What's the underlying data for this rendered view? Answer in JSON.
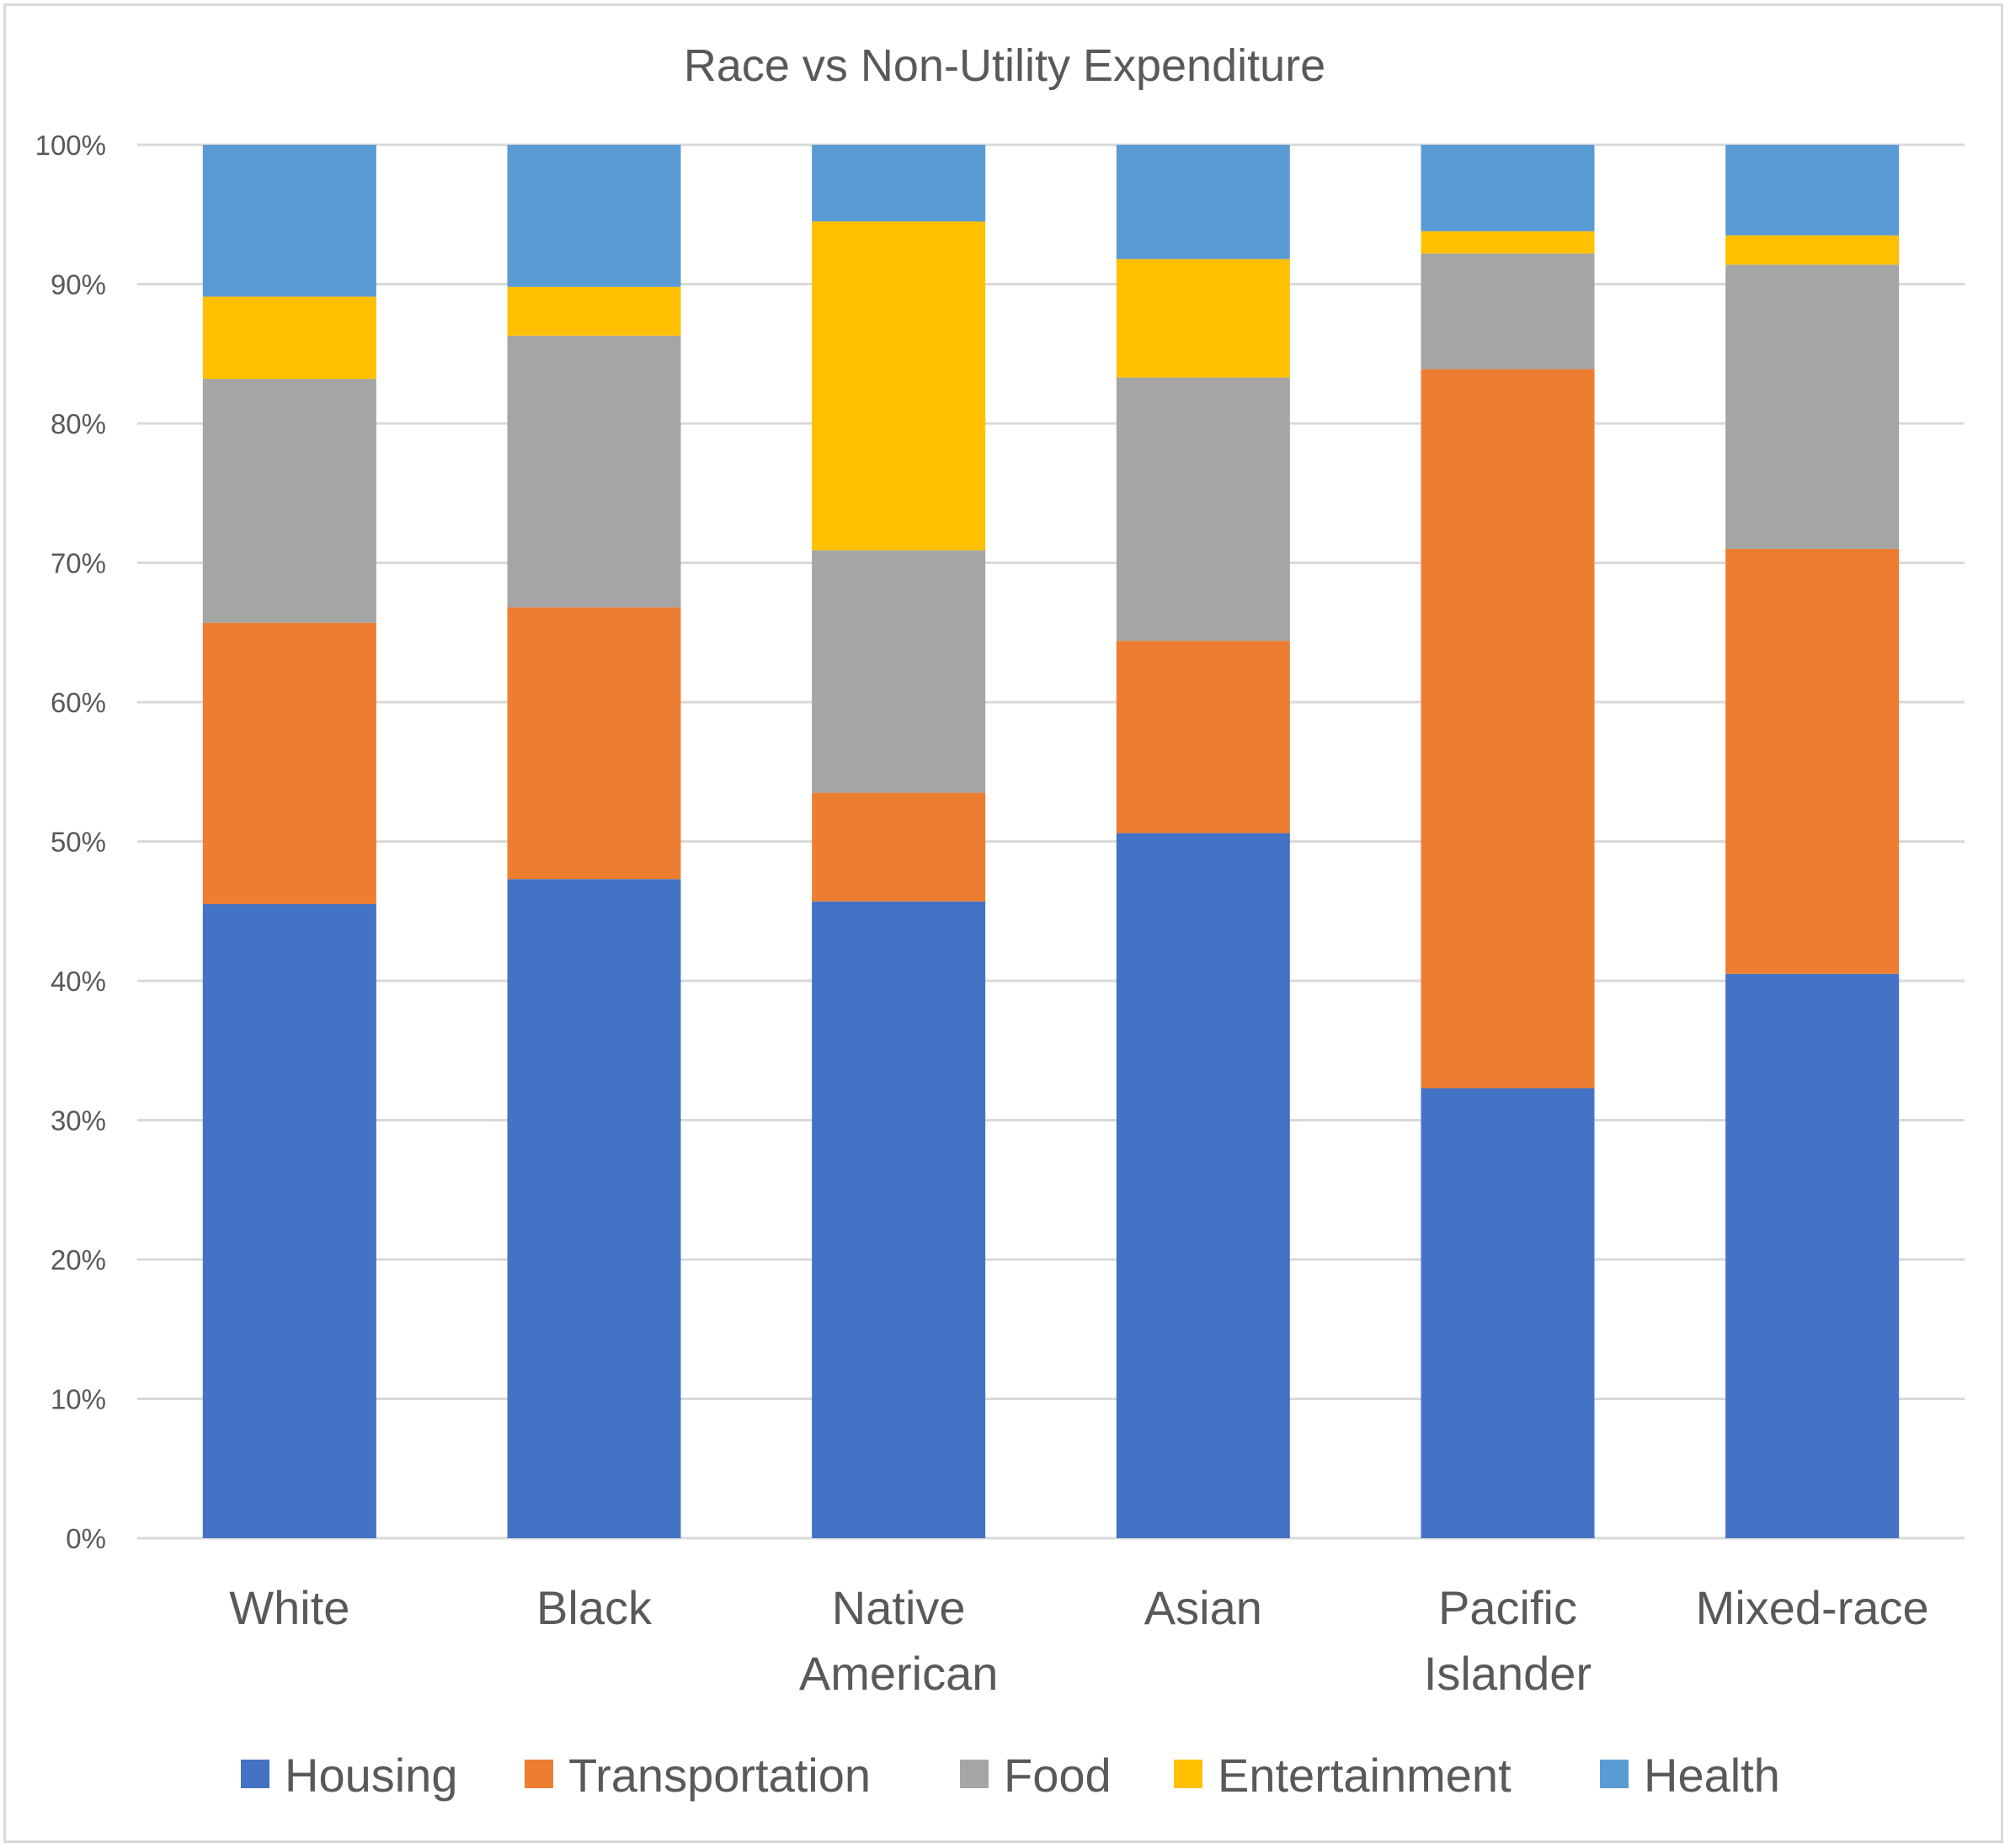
{
  "chart_data": {
    "type": "stacked-bar-100",
    "title": "Race vs Non-Utility Expenditure",
    "xlabel": "",
    "ylabel": "",
    "ylim": [
      0,
      100
    ],
    "y_ticks": [
      "0%",
      "10%",
      "20%",
      "30%",
      "40%",
      "50%",
      "60%",
      "70%",
      "80%",
      "90%",
      "100%"
    ],
    "grid": true,
    "legend_position": "bottom",
    "categories": [
      [
        "White"
      ],
      [
        "Black"
      ],
      [
        "Native",
        "American"
      ],
      [
        "Asian"
      ],
      [
        "Pacific",
        "Islander"
      ],
      [
        "Mixed-race"
      ]
    ],
    "series": [
      {
        "name": "Housing",
        "color": "#4472c4",
        "values": [
          45.5,
          47.3,
          45.7,
          50.6,
          32.3,
          40.5
        ]
      },
      {
        "name": "Transportation",
        "color": "#ed7d31",
        "values": [
          20.2,
          19.5,
          7.8,
          13.8,
          51.6,
          30.5
        ]
      },
      {
        "name": "Food",
        "color": "#a5a5a5",
        "values": [
          17.5,
          19.5,
          17.4,
          18.9,
          8.3,
          20.4
        ]
      },
      {
        "name": "Entertainment",
        "color": "#ffc000",
        "values": [
          5.9,
          3.5,
          23.6,
          8.5,
          1.6,
          2.1
        ]
      },
      {
        "name": "Health",
        "color": "#5b9bd5",
        "values": [
          10.9,
          10.2,
          5.5,
          8.2,
          6.2,
          6.5
        ]
      }
    ]
  }
}
